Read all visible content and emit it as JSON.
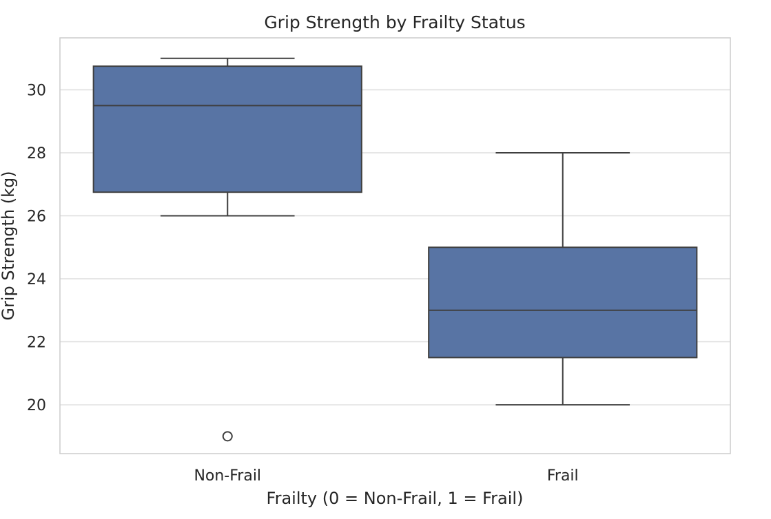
{
  "chart_data": {
    "type": "box",
    "title": "Grip Strength by Frailty Status",
    "xlabel": "Frailty (0 = Non-Frail, 1 = Frail)",
    "ylabel": "Grip Strength (kg)",
    "ylim": [
      18.45,
      31.65
    ],
    "yticks": [
      20,
      22,
      24,
      26,
      28,
      30
    ],
    "grid": true,
    "legend": "none",
    "categories": [
      "Non-Frail",
      "Frail"
    ],
    "boxes": [
      {
        "category": "Non-Frail",
        "whisker_low": 26,
        "q1": 26.75,
        "median": 29.5,
        "q3": 30.75,
        "whisker_high": 31,
        "outliers": [
          19
        ]
      },
      {
        "category": "Frail",
        "whisker_low": 20,
        "q1": 21.5,
        "median": 23,
        "q3": 25,
        "whisker_high": 28,
        "outliers": []
      }
    ],
    "colors": {
      "box_fill": "#5874a4",
      "line": "#3f3f3f",
      "grid": "#dddddd",
      "frame": "#cccccc"
    }
  }
}
